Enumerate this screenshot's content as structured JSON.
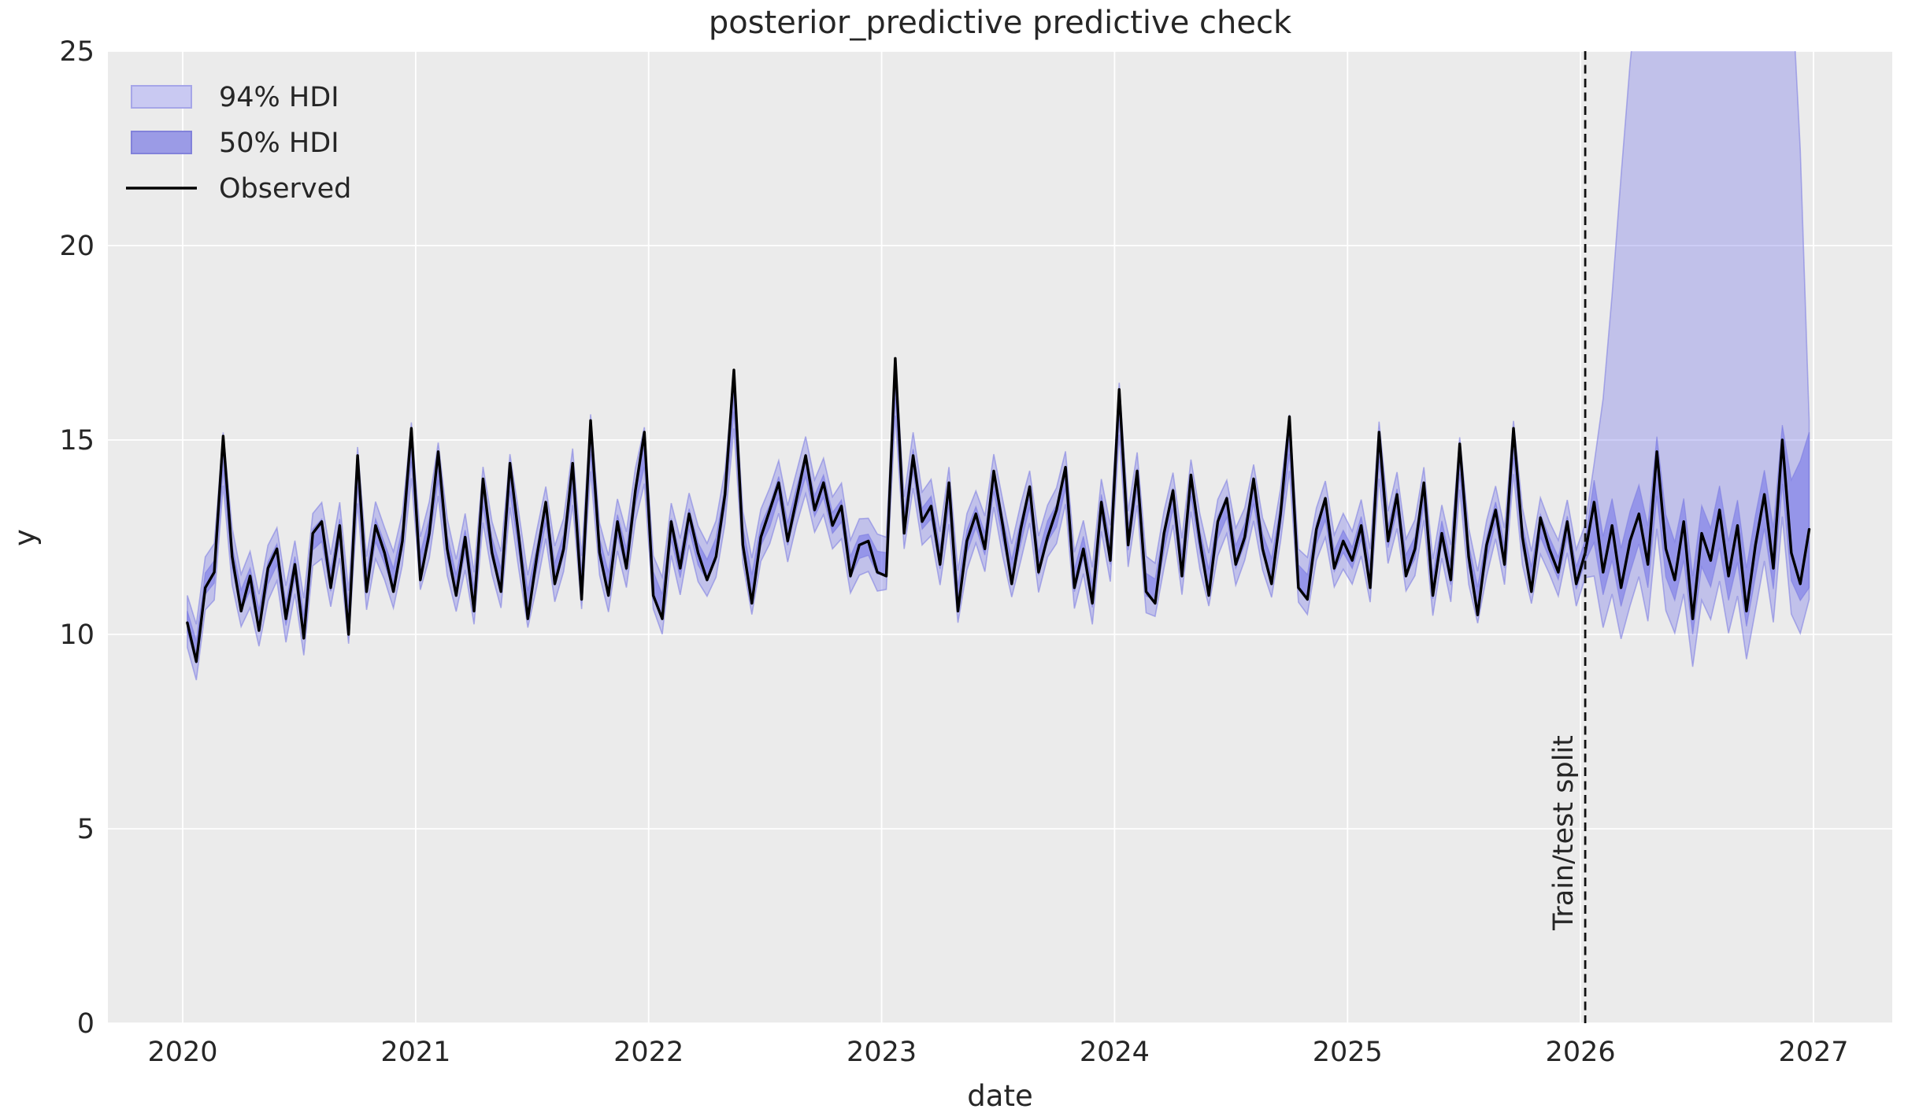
{
  "title": "posterior_predictive predictive check",
  "colors": {
    "figure_bg": "#ffffff",
    "axes_bg": "#ebebeb",
    "grid": "#ffffff",
    "hdi_color": "#5f5fe8",
    "hdi94_fill_opacity": 0.3,
    "hdi50_fill_opacity": 0.45,
    "band_edge": "#7878e0",
    "band_edge_opacity": 0.55,
    "observed": "#000000",
    "split_line": "#111111",
    "text": "#262626",
    "legend_94_fill": "#c9c9f2",
    "legend_94_edge": "#a6a6e8",
    "legend_50_fill": "#9b9be6",
    "legend_50_edge": "#8282da"
  },
  "legend": {
    "position": "upper left",
    "items": [
      {
        "label": "94% HDI",
        "type": "patch",
        "fill": "#c9c9f2",
        "edge": "#a6a6e8"
      },
      {
        "label": "50% HDI",
        "type": "patch",
        "fill": "#9b9be6",
        "edge": "#8282da"
      },
      {
        "label": "Observed",
        "type": "line",
        "stroke": "#000000"
      }
    ]
  },
  "chart_data": {
    "type": "line",
    "title": "posterior_predictive predictive check",
    "xlabel": "date",
    "ylabel": "y",
    "xlim": [
      2019.68,
      2027.34
    ],
    "ylim": [
      0,
      25
    ],
    "xticks": [
      2020,
      2021,
      2022,
      2023,
      2024,
      2025,
      2026,
      2027
    ],
    "yticks": [
      0,
      5,
      10,
      15,
      20,
      25
    ],
    "grid": true,
    "legend_position": "upper left",
    "split_label": "Train/test split",
    "train_test_split_x": 2026.02,
    "series_x": {
      "start": 2020.02,
      "step": 0.0384615
    },
    "observed": [
      10.3,
      9.3,
      11.2,
      11.6,
      15.1,
      12.0,
      10.6,
      11.5,
      10.1,
      11.7,
      12.2,
      10.4,
      11.8,
      9.9,
      12.6,
      12.9,
      11.2,
      12.8,
      10.0,
      14.6,
      11.1,
      12.8,
      12.1,
      11.1,
      12.4,
      15.3,
      11.4,
      12.6,
      14.7,
      12.2,
      11.0,
      12.5,
      10.6,
      14.0,
      12.1,
      11.1,
      14.4,
      12.5,
      10.4,
      12.0,
      13.4,
      11.3,
      12.2,
      14.4,
      10.9,
      15.5,
      12.1,
      11.0,
      12.9,
      11.7,
      13.7,
      15.2,
      11.0,
      10.4,
      12.9,
      11.7,
      13.1,
      12.1,
      11.4,
      12.0,
      13.6,
      16.8,
      12.3,
      10.8,
      12.5,
      13.2,
      13.9,
      12.4,
      13.5,
      14.6,
      13.2,
      13.9,
      12.8,
      13.3,
      11.5,
      12.3,
      12.4,
      11.6,
      11.5,
      17.1,
      12.6,
      14.6,
      12.9,
      13.3,
      11.8,
      13.9,
      10.6,
      12.4,
      13.1,
      12.2,
      14.2,
      12.8,
      11.3,
      12.7,
      13.8,
      11.6,
      12.5,
      13.2,
      14.3,
      11.2,
      12.2,
      10.8,
      13.4,
      11.9,
      16.3,
      12.3,
      14.2,
      11.1,
      10.8,
      12.6,
      13.7,
      11.5,
      14.1,
      12.4,
      11.0,
      12.9,
      13.5,
      11.8,
      12.5,
      14.0,
      12.2,
      11.3,
      13.1,
      15.6,
      11.2,
      10.9,
      12.7,
      13.5,
      11.7,
      12.4,
      11.9,
      12.8,
      11.2,
      15.2,
      12.4,
      13.6,
      11.5,
      12.2,
      13.9,
      11.0,
      12.6,
      11.4,
      14.9,
      12.0,
      10.5,
      12.3,
      13.2,
      11.8,
      15.3,
      12.5,
      11.1,
      13.0,
      12.2,
      11.6,
      12.9,
      11.3,
      12.1,
      13.4,
      11.6,
      12.8,
      11.2,
      12.4,
      13.1,
      11.8,
      14.7,
      12.2,
      11.4,
      12.9,
      10.4,
      12.6,
      11.9,
      13.2,
      11.5,
      12.8,
      10.6,
      12.3,
      13.6,
      11.7,
      15.0,
      12.1,
      11.3,
      12.7
    ],
    "hdi": {
      "smooth_window": 5,
      "center_obs_weight": 0.8,
      "edge_jitter": [
        0.12,
        -0.08,
        0.15,
        -0.14,
        0.05,
        -0.11,
        0.09,
        -0.05
      ],
      "pre_split": {
        "hdi94_halfwidth": 0.7,
        "hdi50_halfwidth": 0.28
      },
      "post_split": {
        "hdi94_low_offset": 1.6,
        "hdi50_low_offset": 0.75,
        "hdi50_high_offset": 0.8,
        "hdi94_high_anchors": [
          [
            2026.02,
            13.3
          ],
          [
            2026.08,
            15.0
          ],
          [
            2026.12,
            17.5
          ],
          [
            2026.17,
            21.5
          ],
          [
            2026.23,
            26.0
          ],
          [
            2026.32,
            30.0
          ],
          [
            2026.5,
            33.0
          ],
          [
            2026.7,
            32.0
          ],
          [
            2026.84,
            29.0
          ],
          [
            2026.92,
            26.5
          ],
          [
            2026.96,
            19.5
          ],
          [
            2026.98,
            15.5
          ]
        ],
        "hdi50_high_end_anchors": [
          [
            2026.84,
            13.4
          ],
          [
            2026.93,
            14.2
          ],
          [
            2026.98,
            15.2
          ]
        ],
        "hdi50_low_end_anchors": [
          [
            2026.9,
            11.6
          ],
          [
            2026.98,
            11.2
          ]
        ]
      }
    }
  }
}
